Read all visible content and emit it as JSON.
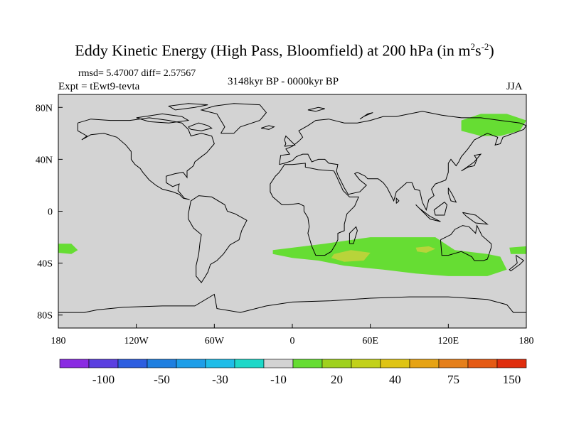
{
  "title": {
    "main": "Eddy Kinetic Energy (High Pass, Bloomfield) at 200 hPa (in m",
    "sup1": "2",
    "mid": "s",
    "sup2": "-2",
    "end": ")"
  },
  "stats": "rmsd= 5.47007 diff= 2.57567",
  "experiment": "Expt = tEwt9-tevta",
  "period": "3148kyr BP - 0000kyr BP",
  "season": "JJA",
  "colors": {
    "land_ocean_bg": "#d3d3d3",
    "anomaly_20": "#66dd33",
    "anomaly_40": "#b8d43a",
    "frame": "#000000"
  },
  "map_data": {
    "projection": "equirectangular",
    "lon_range": [
      -180,
      180
    ],
    "lat_range": [
      -90,
      90
    ],
    "x_ticks": [
      "180",
      "120W",
      "60W",
      "0",
      "60E",
      "120E",
      "180"
    ],
    "y_ticks": [
      "80N",
      "40N",
      "0",
      "40S",
      "80S"
    ],
    "lon_tick_values": [
      -180,
      -120,
      -60,
      0,
      60,
      120,
      180
    ],
    "lat_tick_values": [
      80,
      40,
      0,
      -40,
      -80
    ],
    "regions": [
      {
        "name": "southern-ocean-anomaly",
        "level": 20,
        "coords": [
          [
            -15,
            -30
          ],
          [
            25,
            -25
          ],
          [
            60,
            -20
          ],
          [
            110,
            -20
          ],
          [
            125,
            -30
          ],
          [
            150,
            -33
          ],
          [
            160,
            -35
          ],
          [
            165,
            -45
          ],
          [
            150,
            -50
          ],
          [
            120,
            -50
          ],
          [
            95,
            -48
          ],
          [
            70,
            -45
          ],
          [
            40,
            -42
          ],
          [
            20,
            -38
          ],
          [
            0,
            -36
          ],
          [
            -15,
            -33
          ]
        ]
      },
      {
        "name": "southern-ocean-core",
        "level": 40,
        "coords": [
          [
            32,
            -33
          ],
          [
            45,
            -30
          ],
          [
            60,
            -32
          ],
          [
            55,
            -38
          ],
          [
            40,
            -39
          ],
          [
            30,
            -36
          ]
        ]
      },
      {
        "name": "indian-ocean-core",
        "level": 40,
        "coords": [
          [
            95,
            -28
          ],
          [
            105,
            -27
          ],
          [
            110,
            -29
          ],
          [
            103,
            -32
          ],
          [
            96,
            -31
          ]
        ]
      },
      {
        "name": "north-pacific-anomaly",
        "level": 20,
        "coords": [
          [
            130,
            70
          ],
          [
            145,
            75
          ],
          [
            165,
            75
          ],
          [
            180,
            70
          ],
          [
            175,
            62
          ],
          [
            160,
            58
          ],
          [
            145,
            58
          ],
          [
            130,
            62
          ]
        ]
      },
      {
        "name": "south-pacific-west-anomaly",
        "level": 20,
        "coords": [
          [
            -180,
            -25
          ],
          [
            -170,
            -25
          ],
          [
            -165,
            -30
          ],
          [
            -170,
            -33
          ],
          [
            -180,
            -32
          ]
        ]
      },
      {
        "name": "south-pacific-east-anomaly",
        "level": 20,
        "coords": [
          [
            167,
            -28
          ],
          [
            180,
            -27
          ],
          [
            180,
            -33
          ],
          [
            168,
            -33
          ]
        ]
      }
    ]
  },
  "colorbar": {
    "colors": [
      "#8a2be2",
      "#5b3fe0",
      "#2d5ee0",
      "#1f7fe0",
      "#1e9ee8",
      "#1fbde8",
      "#1ed8c8",
      "#d3d3d3",
      "#66dd33",
      "#9fd11e",
      "#c2d11a",
      "#dfc414",
      "#e6a314",
      "#e57f1a",
      "#e55a14",
      "#e02d0d"
    ],
    "labels": [
      "-100",
      "-50",
      "-30",
      "-10",
      "20",
      "40",
      "75",
      "150"
    ],
    "label_boundary_index": [
      2,
      4,
      6,
      8,
      10,
      12,
      14,
      16
    ]
  }
}
